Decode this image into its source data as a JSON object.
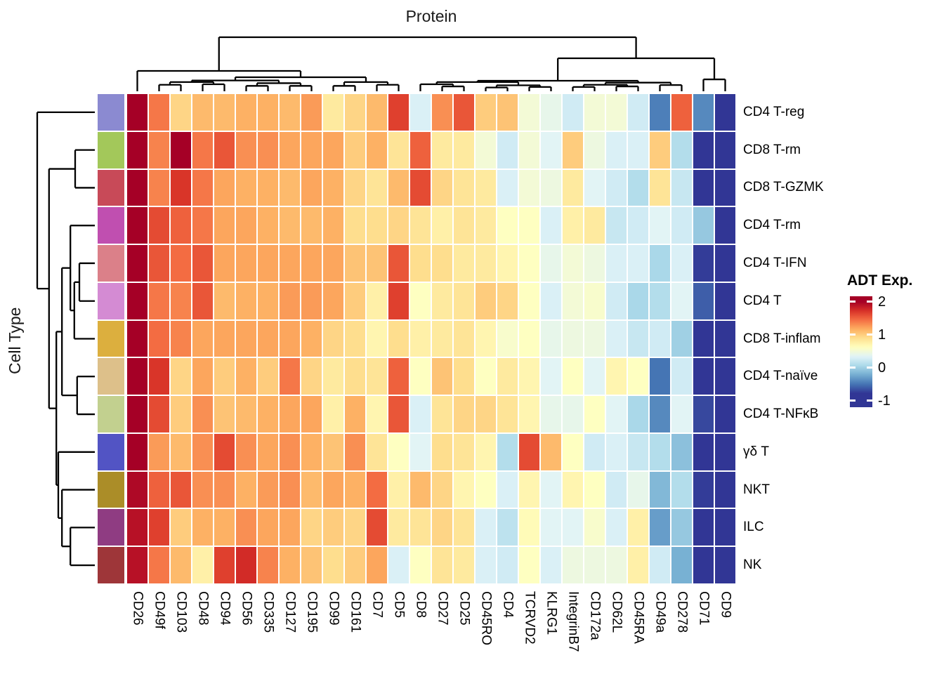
{
  "chart_data": {
    "type": "heatmap",
    "title": "Protein",
    "y_axis_title": "Cell Type",
    "legend": {
      "title": "ADT Exp.",
      "ticks": [
        2,
        1,
        0,
        -1
      ],
      "vmax": 2.16,
      "vmin": -1.2
    },
    "colormap": {
      "anchors": [
        "#313695",
        "#4575b4",
        "#74add1",
        "#abd9e9",
        "#e0f3f8",
        "#ffffbf",
        "#fee090",
        "#fdae61",
        "#f46d43",
        "#d73027",
        "#a50026"
      ],
      "a": 0.36,
      "b": 0.28
    },
    "columns": [
      "CD26",
      "CD49f",
      "CD103",
      "CD48",
      "CD94",
      "CD56",
      "CD335",
      "CD127",
      "CD195",
      "CD99",
      "CD161",
      "CD7",
      "CD5",
      "CD8",
      "CD27",
      "CD25",
      "CD45RO",
      "CD4",
      "TCRVD2",
      "KLRG1",
      "IntegrinB7",
      "CD172a",
      "CD62L",
      "CD45RA",
      "CD49a",
      "CD278",
      "CD71",
      "CD9"
    ],
    "rows": [
      "CD4 T-reg",
      "CD8 T-rm",
      "CD8 T-GZMK",
      "CD4 T-rm",
      "CD4 T-IFN",
      "CD4 T",
      "CD8 T-inflam",
      "CD4 T-naïve",
      "CD4 T-NFκB",
      "γδ T",
      "NKT",
      "ILC",
      "NK"
    ],
    "row_annotation_colors": [
      "#8b8ad1",
      "#a3c85a",
      "#c84a58",
      "#c04fb0",
      "#db8089",
      "#d48bd3",
      "#dcaf3e",
      "#ddc08a",
      "#c2d08f",
      "#5254c4",
      "#ab8d28",
      "#8f3c82",
      "#9e3639"
    ],
    "values": [
      [
        2.0,
        1.4,
        0.95,
        1.1,
        1.1,
        1.15,
        1.15,
        1.1,
        1.25,
        0.8,
        0.95,
        1.1,
        1.65,
        0.3,
        1.3,
        1.55,
        1.0,
        1.05,
        0.5,
        0.4,
        0.25,
        0.5,
        0.5,
        0.25,
        -0.45,
        1.5,
        -0.4,
        -0.95
      ],
      [
        2.1,
        1.35,
        2.1,
        1.4,
        1.55,
        1.3,
        1.3,
        1.2,
        1.2,
        1.2,
        1.0,
        1.15,
        0.85,
        1.5,
        0.8,
        0.8,
        0.5,
        0.25,
        0.5,
        0.35,
        1.0,
        0.45,
        0.3,
        0.3,
        1.0,
        0.1,
        -0.85,
        -0.9
      ],
      [
        2.1,
        1.35,
        1.7,
        1.4,
        1.2,
        1.15,
        1.15,
        1.1,
        1.2,
        1.15,
        0.95,
        0.85,
        1.1,
        1.6,
        0.95,
        0.85,
        0.8,
        0.3,
        0.5,
        0.45,
        0.8,
        0.35,
        0.25,
        0.1,
        0.85,
        0.2,
        -0.9,
        -0.9
      ],
      [
        2.1,
        1.6,
        1.5,
        1.4,
        1.2,
        1.2,
        1.15,
        1.1,
        1.1,
        1.15,
        0.9,
        0.9,
        0.95,
        0.85,
        0.75,
        0.85,
        0.8,
        0.6,
        0.6,
        0.3,
        0.75,
        0.8,
        0.2,
        0.25,
        0.35,
        0.25,
        -0.05,
        -0.9
      ],
      [
        2.1,
        1.55,
        1.45,
        1.55,
        1.2,
        1.2,
        1.2,
        1.2,
        1.2,
        1.2,
        1.05,
        1.05,
        1.55,
        0.9,
        0.9,
        0.8,
        0.8,
        0.7,
        0.6,
        0.4,
        0.5,
        0.45,
        0.3,
        0.3,
        0.05,
        0.3,
        -0.75,
        -0.9
      ],
      [
        2.1,
        1.4,
        1.35,
        1.55,
        1.1,
        1.15,
        1.15,
        1.25,
        1.25,
        1.2,
        1.0,
        0.75,
        1.65,
        0.6,
        0.8,
        0.85,
        1.0,
        0.95,
        0.6,
        0.3,
        0.5,
        0.55,
        0.25,
        0.05,
        0.1,
        0.35,
        -0.6,
        -0.9
      ],
      [
        2.1,
        1.45,
        1.35,
        1.2,
        1.2,
        1.2,
        1.2,
        1.2,
        1.15,
        0.95,
        0.9,
        0.7,
        0.9,
        0.75,
        0.8,
        0.85,
        0.7,
        0.55,
        0.6,
        0.4,
        0.45,
        0.45,
        0.3,
        0.2,
        0.25,
        0.0,
        -0.85,
        -0.85
      ],
      [
        2.1,
        1.7,
        0.95,
        1.2,
        1.0,
        1.15,
        1.0,
        1.4,
        0.95,
        0.8,
        0.9,
        0.85,
        1.5,
        0.6,
        1.05,
        0.9,
        0.6,
        0.8,
        0.7,
        0.35,
        0.6,
        0.35,
        0.7,
        0.6,
        -0.5,
        0.25,
        -0.9,
        -0.9
      ],
      [
        2.1,
        1.6,
        1.0,
        1.3,
        1.05,
        1.1,
        1.15,
        1.2,
        1.2,
        0.75,
        1.15,
        0.7,
        1.55,
        0.3,
        0.85,
        0.95,
        0.95,
        0.85,
        0.7,
        0.4,
        0.4,
        0.6,
        0.35,
        0.05,
        -0.4,
        0.35,
        -0.7,
        -0.9
      ],
      [
        2.1,
        1.25,
        1.1,
        1.3,
        1.6,
        1.3,
        1.2,
        1.3,
        1.15,
        1.05,
        1.3,
        0.85,
        0.6,
        0.35,
        0.9,
        0.85,
        0.7,
        0.1,
        1.6,
        1.1,
        0.6,
        0.25,
        0.3,
        0.2,
        0.1,
        -0.1,
        -0.9,
        -0.9
      ],
      [
        1.95,
        1.5,
        1.55,
        1.3,
        1.3,
        1.15,
        1.25,
        1.3,
        1.1,
        1.2,
        1.15,
        1.45,
        0.75,
        1.1,
        0.95,
        0.7,
        0.6,
        0.3,
        0.7,
        0.35,
        0.7,
        0.6,
        0.25,
        0.4,
        -0.15,
        0.1,
        -0.75,
        -0.9
      ],
      [
        1.9,
        1.65,
        1.0,
        1.15,
        1.15,
        1.3,
        1.2,
        1.2,
        0.95,
        1.0,
        0.95,
        1.6,
        0.8,
        0.85,
        0.95,
        0.85,
        0.3,
        0.15,
        0.65,
        0.35,
        0.35,
        0.55,
        0.3,
        0.75,
        -0.3,
        -0.05,
        -0.9,
        -0.9
      ],
      [
        1.9,
        1.4,
        1.1,
        0.75,
        1.65,
        1.75,
        1.35,
        1.15,
        1.05,
        0.9,
        1.0,
        1.2,
        0.3,
        0.6,
        0.85,
        0.8,
        0.3,
        0.25,
        0.6,
        0.3,
        0.45,
        0.45,
        0.45,
        0.75,
        0.25,
        -0.2,
        -0.9,
        -0.9
      ]
    ],
    "col_dendrogram": {
      "h": 1.0,
      "c": [
        {
          "h": 0.377,
          "c": [
            0,
            {
              "h": 0.26,
              "c": [
                {
                  "h": 0.2,
                  "c": [
                    {
                      "h": 0.17,
                      "c": [
                        {
                          "h": 0.12,
                          "c": [
                            1,
                            2
                          ]
                        },
                        {
                          "h": 0.13,
                          "c": [
                            3,
                            4
                          ]
                        }
                      ]
                    },
                    {
                      "h": 0.15,
                      "c": [
                        {
                          "h": 0.1,
                          "c": [
                            5,
                            6
                          ]
                        },
                        {
                          "h": 0.1,
                          "c": [
                            7,
                            8
                          ]
                        }
                      ]
                    }
                  ]
                },
                {
                  "h": 0.17,
                  "c": [
                    {
                      "h": 0.1,
                      "c": [
                        9,
                        10
                      ]
                    },
                    {
                      "h": 0.12,
                      "c": [
                        11,
                        12
                      ]
                    }
                  ]
                }
              ]
            }
          ]
        },
        {
          "h": 0.61,
          "c": [
            {
              "h": 0.195,
              "c": [
                {
                  "h": 0.17,
                  "c": [
                    {
                      "h": 0.13,
                      "c": [
                        13,
                        {
                          "h": 0.09,
                          "c": [
                            14,
                            15
                          ]
                        }
                      ]
                    },
                    {
                      "h": 0.11,
                      "c": [
                        {
                          "h": 0.07,
                          "c": [
                            16,
                            17
                          ]
                        },
                        {
                          "h": 0.08,
                          "c": [
                            18,
                            19
                          ]
                        }
                      ]
                    }
                  ]
                },
                {
                  "h": 0.16,
                  "c": [
                    {
                      "h": 0.12,
                      "c": [
                        {
                          "h": 0.08,
                          "c": [
                            20,
                            21
                          ]
                        },
                        {
                          "h": 0.09,
                          "c": [
                            22,
                            23
                          ]
                        }
                      ]
                    },
                    {
                      "h": 0.115,
                      "c": [
                        24,
                        25
                      ]
                    }
                  ]
                }
              ]
            },
            {
              "h": 0.22,
              "c": [
                26,
                27
              ]
            }
          ]
        }
      ]
    },
    "row_dendrogram": {
      "h": 1.0,
      "c": [
        0,
        {
          "h": 0.79,
          "c": [
            {
              "h": 0.325,
              "c": [
                1,
                2
              ]
            },
            {
              "h": 0.66,
              "c": [
                {
                  "h": 0.56,
                  "c": [
                    {
                      "h": 0.41,
                      "c": [
                        3,
                        {
                          "h": 0.34,
                          "c": [
                            {
                              "h": 0.25,
                              "c": [
                                4,
                                5
                              ]
                            },
                            6
                          ]
                        }
                      ]
                    },
                    {
                      "h": 0.29,
                      "c": [
                        7,
                        8
                      ]
                    }
                  ]
                },
                {
                  "h": 0.625,
                  "c": [
                    9,
                    {
                      "h": 0.56,
                      "c": [
                        10,
                        {
                          "h": 0.41,
                          "c": [
                            11,
                            12
                          ]
                        }
                      ]
                    }
                  ]
                }
              ]
            }
          ]
        }
      ]
    }
  }
}
